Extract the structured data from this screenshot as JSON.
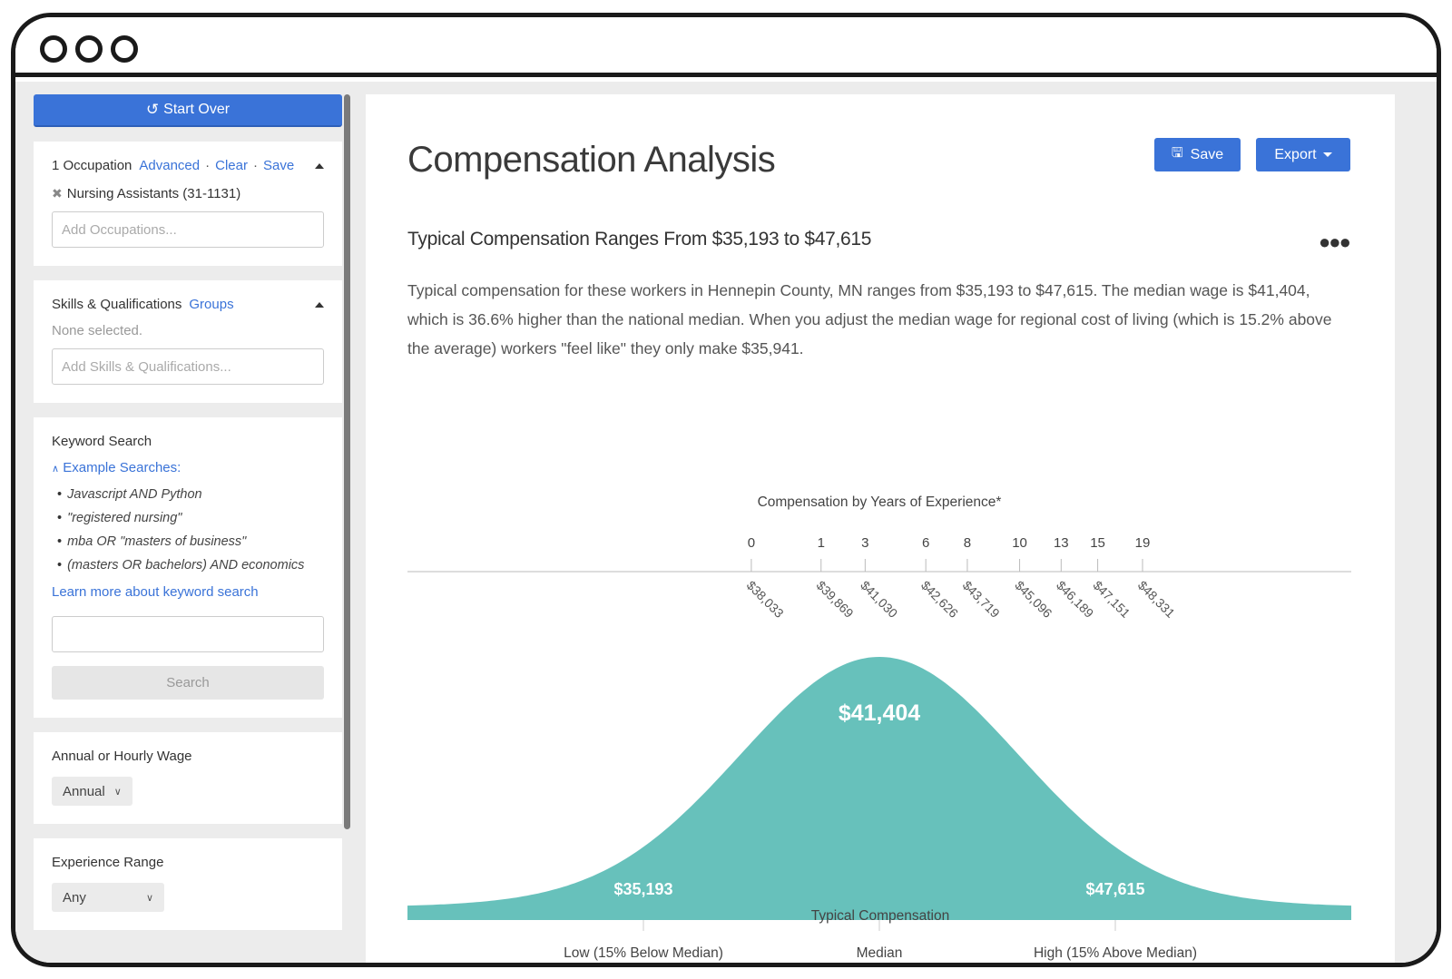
{
  "sidebar": {
    "start_over": "Start Over",
    "occupation": {
      "title": "1 Occupation",
      "advanced": "Advanced",
      "clear": "Clear",
      "save": "Save",
      "selected": "Nursing Assistants (31-1131)",
      "placeholder": "Add Occupations..."
    },
    "skills": {
      "title": "Skills & Qualifications",
      "groups": "Groups",
      "none": "None selected.",
      "placeholder": "Add Skills & Qualifications..."
    },
    "keyword": {
      "title": "Keyword Search",
      "examples_toggle": "Example Searches:",
      "examples": [
        "Javascript AND Python",
        "\"registered nursing\"",
        "mba OR \"masters of business\"",
        "(masters OR bachelors) AND economics"
      ],
      "learn_more": "Learn more about keyword search",
      "input_value": "",
      "search_button": "Search"
    },
    "wage": {
      "title": "Annual or Hourly Wage",
      "selected": "Annual"
    },
    "experience": {
      "title": "Experience Range",
      "selected": "Any"
    }
  },
  "main": {
    "title": "Compensation Analysis",
    "save_button": "Save",
    "export_button": "Export",
    "subtitle": "Typical Compensation Ranges From $35,193 to $47,615",
    "description": "Typical compensation for these workers in Hennepin County, MN ranges from $35,193 to $47,615. The median wage is $41,404, which is 36.6% higher than the national median. When you adjust the median wage for regional cost of living (which is 15.2% above the average) workers \"feel like\" they only make $35,941."
  },
  "colors": {
    "accent": "#3a73d8",
    "curve": "#67c1bb"
  },
  "chart_data": {
    "type": "area",
    "title": "Compensation by Years of Experience*",
    "xlabel": "Typical Compensation",
    "experience_ticks": [
      {
        "years": "0",
        "value": 38033,
        "label": "$38,033"
      },
      {
        "years": "1",
        "value": 39869,
        "label": "$39,869"
      },
      {
        "years": "3",
        "value": 41030,
        "label": "$41,030"
      },
      {
        "years": "6",
        "value": 42626,
        "label": "$42,626"
      },
      {
        "years": "8",
        "value": 43719,
        "label": "$43,719"
      },
      {
        "years": "10",
        "value": 45096,
        "label": "$45,096"
      },
      {
        "years": "13",
        "value": 46189,
        "label": "$46,189"
      },
      {
        "years": "15",
        "value": 47151,
        "label": "$47,151"
      },
      {
        "years": "19",
        "value": 48331,
        "label": "$48,331"
      }
    ],
    "low": {
      "value": 35193,
      "label": "$35,193",
      "axis_label": "Low (15% Below Median)"
    },
    "median": {
      "value": 41404,
      "label": "$41,404",
      "axis_label": "Median"
    },
    "high": {
      "value": 47615,
      "label": "$47,615",
      "axis_label": "High (15% Above Median)"
    }
  }
}
